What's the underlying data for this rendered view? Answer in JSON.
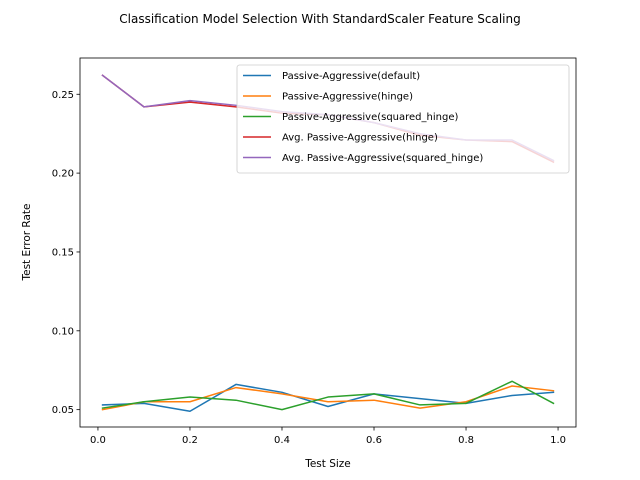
{
  "chart_data": {
    "type": "line",
    "title": "Classification Model Selection With StandardScaler Feature Scaling",
    "xlabel": "Test Size",
    "ylabel": "Test Error Rate",
    "xlim": [
      -0.039,
      1.039
    ],
    "ylim": [
      0.039,
      0.273
    ],
    "xticks": [
      "0.0",
      "0.2",
      "0.4",
      "0.6",
      "0.8",
      "1.0"
    ],
    "yticks": [
      "0.05",
      "0.10",
      "0.15",
      "0.20",
      "0.25"
    ],
    "grid": false,
    "legend_position": "top-right",
    "x": [
      0.01,
      0.1,
      0.2,
      0.3,
      0.4,
      0.5,
      0.6,
      0.7,
      0.8,
      0.9,
      0.99
    ],
    "series": [
      {
        "name": "Passive-Aggressive(default)",
        "color": "#1f77b4",
        "values": [
          0.053,
          0.054,
          0.049,
          0.066,
          0.061,
          0.052,
          0.06,
          0.057,
          0.054,
          0.059,
          0.061
        ]
      },
      {
        "name": "Passive-Aggressive(hinge)",
        "color": "#ff7f0e",
        "values": [
          0.05,
          0.055,
          0.055,
          0.064,
          0.06,
          0.055,
          0.056,
          0.051,
          0.055,
          0.065,
          0.062
        ]
      },
      {
        "name": "Passive-Aggressive(squared_hinge)",
        "color": "#2ca02c",
        "values": [
          0.051,
          0.055,
          0.058,
          0.056,
          0.05,
          0.058,
          0.06,
          0.053,
          0.054,
          0.068,
          0.054
        ]
      },
      {
        "name": "Avg. Passive-Aggressive(hinge)",
        "color": "#d62728",
        "values": [
          0.262,
          0.242,
          0.245,
          0.242,
          0.238,
          0.237,
          0.232,
          0.224,
          0.221,
          0.22,
          0.207
        ]
      },
      {
        "name": "Avg. Passive-Aggressive(squared_hinge)",
        "color": "#9467bd",
        "values": [
          0.262,
          0.242,
          0.246,
          0.243,
          0.239,
          0.237,
          0.232,
          0.225,
          0.221,
          0.221,
          0.208
        ]
      }
    ]
  }
}
